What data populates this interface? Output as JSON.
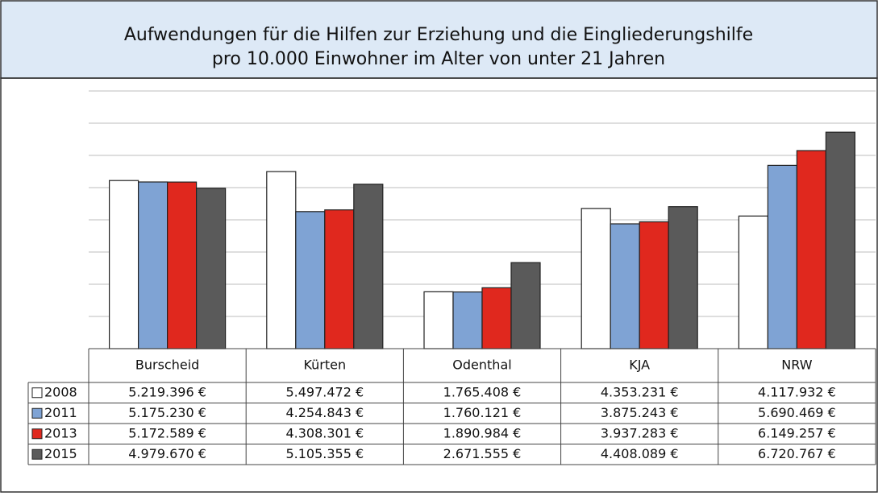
{
  "chart_data": {
    "type": "bar",
    "title": "Aufwendungen für die Hilfen zur Erziehung und die Eingliederungshilfe",
    "subtitle": "pro 10.000 Einwohner im Alter von unter 21 Jahren",
    "categories": [
      "Burscheid",
      "Kürten",
      "Odenthal",
      "KJA",
      "NRW"
    ],
    "series": [
      {
        "name": "2008",
        "color": "#ffffff",
        "values": [
          5219396,
          5497472,
          1765408,
          4353231,
          4117932
        ],
        "value_labels": [
          "5.219.396 €",
          "5.497.472 €",
          "1.765.408 €",
          "4.353.231 €",
          "4.117.932 €"
        ]
      },
      {
        "name": "2011",
        "color": "#7fa3d4",
        "values": [
          5175230,
          4254843,
          1760121,
          3875243,
          5690469
        ],
        "value_labels": [
          "5.175.230 €",
          "4.254.843 €",
          "1.760.121 €",
          "3.875.243 €",
          "5.690.469 €"
        ]
      },
      {
        "name": "2013",
        "color": "#e0281e",
        "values": [
          5172589,
          4308301,
          1890984,
          3937283,
          6149257
        ],
        "value_labels": [
          "5.172.589 €",
          "4.308.301 €",
          "1.890.984 €",
          "3.937.283 €",
          "6.149.257 €"
        ]
      },
      {
        "name": "2015",
        "color": "#5a5a5a",
        "values": [
          4979670,
          5105355,
          2671555,
          4408089,
          6720767
        ],
        "value_labels": [
          "4.979.670 €",
          "5.105.355 €",
          "2.671.555 €",
          "4.408.089 €",
          "6.720.767 €"
        ]
      }
    ],
    "ylim": [
      0,
      8000000
    ],
    "yticks": [
      1000000,
      2000000,
      3000000,
      4000000,
      5000000,
      6000000,
      7000000,
      8000000
    ],
    "grid": true
  }
}
